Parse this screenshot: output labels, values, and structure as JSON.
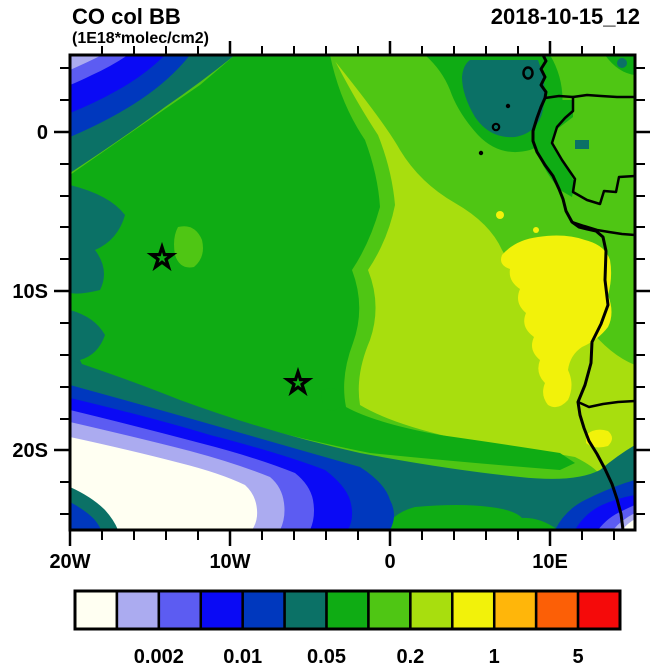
{
  "header": {
    "title": "CO col BB",
    "subtitle": "(1E18*molec/cm2)",
    "timestamp": "2018-10-15_12"
  },
  "chart_data": {
    "type": "heatmap",
    "subtype": "filled-contour-map",
    "title": "CO col BB",
    "units": "1E18*molec/cm2",
    "timestamp": "2018-10-15_12",
    "region": "Tropical South Atlantic and western Central/Southern Africa coastline",
    "x_axis": {
      "kind": "longitude",
      "tick_labels": [
        "20W",
        "10W",
        "0",
        "10E"
      ],
      "range_deg": [
        -20,
        15.3
      ],
      "minor_tick_step_deg": 2,
      "grid": false
    },
    "y_axis": {
      "kind": "latitude",
      "tick_labels": [
        "0",
        "10S",
        "20S"
      ],
      "range_deg": [
        4.8,
        -25
      ],
      "minor_tick_step_deg": 2,
      "grid": false
    },
    "colorbar": {
      "orientation": "horizontal",
      "position": "bottom",
      "levels": [
        0.001,
        0.002,
        0.005,
        0.01,
        0.02,
        0.05,
        0.1,
        0.2,
        0.5,
        1,
        2,
        5
      ],
      "labels": [
        "0.002",
        "0.01",
        "0.05",
        "0.2",
        "1",
        "5"
      ],
      "colors": [
        "#fffff2",
        "#ababf0",
        "#5c5cf2",
        "#0a0af5",
        "#0038be",
        "#0b7166",
        "#0fac14",
        "#4fc614",
        "#a8de0e",
        "#f2f20a",
        "#ffb60a",
        "#fc5f06",
        "#f50a0a"
      ]
    },
    "markers": [
      {
        "type": "star",
        "lon": "14.3W",
        "lat": "8S"
      },
      {
        "type": "star",
        "lon": "5.8W",
        "lat": "16S"
      }
    ],
    "zones": [
      {
        "area": "northwest corner near 20W,2N",
        "value_range": "0.001-0.01 (white/lavender/blue core)"
      },
      {
        "area": "west and left edge band",
        "value_range": "0.02-0.05 (teal over green)"
      },
      {
        "area": "broad west-central field",
        "value_range": "0.1 (green)"
      },
      {
        "area": "central and eastern field",
        "value_range": "0.2-0.5 (light green / yellow-green)"
      },
      {
        "area": "near Angola coast 8S-14S around 12E",
        "value_range": "1-2 (yellow)"
      },
      {
        "area": "Gulf of Guinea coast near 0,9E",
        "value_range": "0.02-0.05 (teal patch)"
      },
      {
        "area": "southwest corner and southern edge",
        "value_range": "<0.001-0.005 (white into blue bands)"
      }
    ],
    "overlays": [
      "African west coastline",
      "country borders (Gabon/Congo/Angola/Namibia)",
      "coastal islands (Bioko, Principe, Sao Tome, Annobon)"
    ]
  }
}
